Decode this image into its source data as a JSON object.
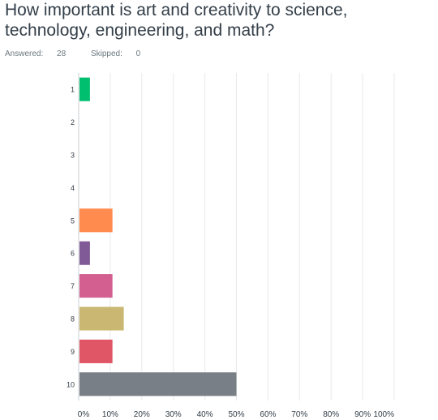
{
  "question": {
    "title": "How important is art and creativity to science, technology, engineering, and math?",
    "answered_label": "Answered:",
    "answered_count": "28",
    "skipped_label": "Skipped:",
    "skipped_count": "0"
  },
  "chart_data": {
    "type": "bar",
    "orientation": "horizontal",
    "categories": [
      "1",
      "2",
      "3",
      "4",
      "5",
      "6",
      "7",
      "8",
      "9",
      "10"
    ],
    "values": [
      3.57,
      0,
      0,
      0,
      10.71,
      3.57,
      10.71,
      14.29,
      10.71,
      50.0
    ],
    "colors": [
      "#00bf6f",
      "#507cb6",
      "#f9be00",
      "#6bc8cd",
      "#ff8b4f",
      "#7f5a96",
      "#d25f90",
      "#c9b772",
      "#e05666",
      "#787f86"
    ],
    "xlim": [
      0,
      100
    ],
    "xticks": [
      0,
      10,
      20,
      30,
      40,
      50,
      60,
      70,
      80,
      90,
      100
    ],
    "xtick_labels": [
      "0%",
      "10%",
      "20%",
      "30%",
      "40%",
      "50%",
      "60%",
      "70%",
      "80%",
      "90%",
      "100%"
    ],
    "grid": true
  }
}
